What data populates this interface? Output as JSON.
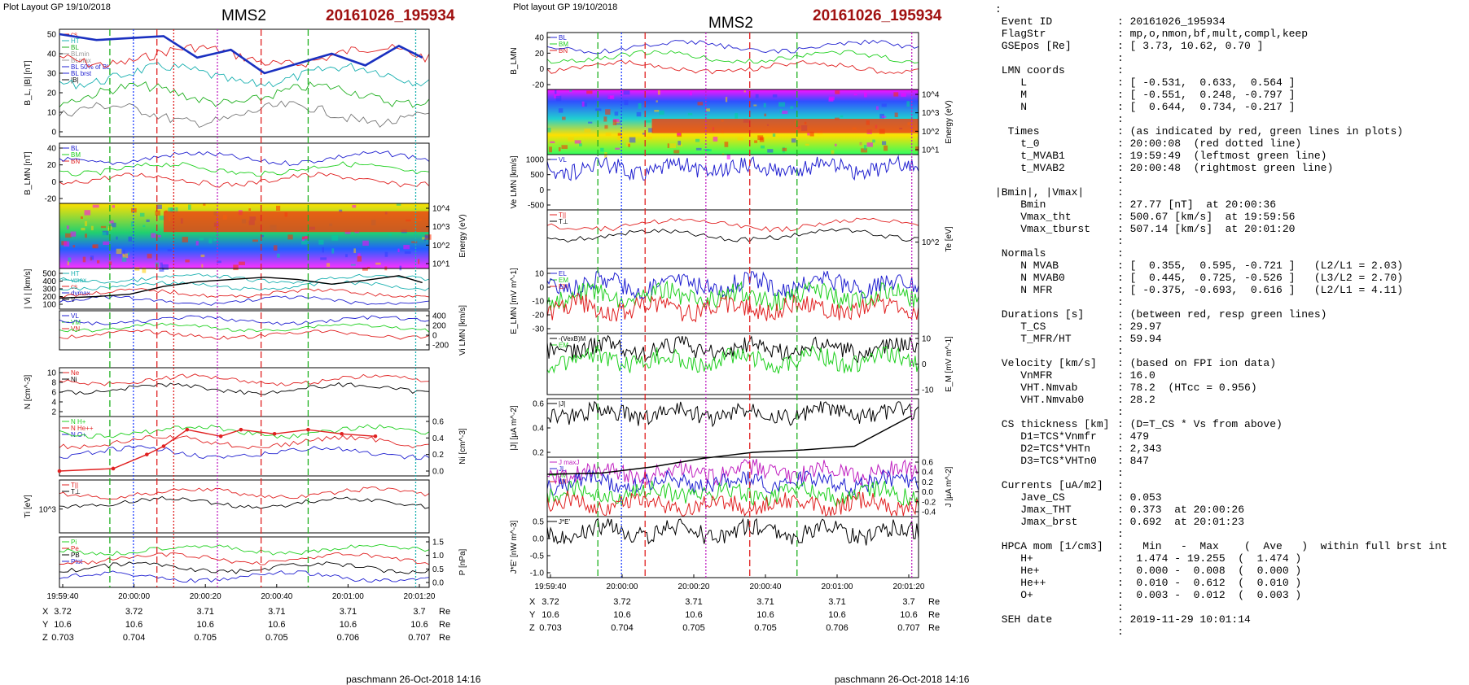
{
  "left_figure": {
    "header": "Plot Layout GP 19/10/2018",
    "spacecraft": "MMS2",
    "event": "20161026_195934",
    "footer": "paschmann 26-Oct-2018 14:16",
    "time_ticks": [
      "19:59:40",
      "20:00:00",
      "20:00:20",
      "20:00:40",
      "20:01:00",
      "20:01:20"
    ],
    "position_table": {
      "X": [
        "3.72",
        "3.72",
        "3.71",
        "3.71",
        "3.71",
        "3.7"
      ],
      "Y": [
        "10.6",
        "10.6",
        "10.6",
        "10.6",
        "10.6",
        "10.6"
      ],
      "Z": [
        "0.703",
        "0.704",
        "0.705",
        "0.705",
        "0.706",
        "0.707"
      ],
      "unit": "Re"
    },
    "panels": [
      {
        "ylabel": "B_L, |B| [nT]",
        "ticks": [
          "50",
          "40",
          "30",
          "20",
          "10",
          "0"
        ],
        "legend": [
          "cs",
          "HT",
          "BL",
          "BLmin",
          "BLmax",
          "BL 50% of BL",
          "BL brst",
          "|B|"
        ],
        "legend_colors": [
          "#e02020",
          "#19b0b0",
          "#20b020",
          "#999999",
          "#999999",
          "#2020d0",
          "#2020d0",
          "#000000"
        ]
      },
      {
        "ylabel": "B_LMN [nT]",
        "ticks": [
          "40",
          "20",
          "0",
          "-20"
        ],
        "legend": [
          "BL",
          "BM",
          "BN"
        ],
        "legend_colors": [
          "#2020d0",
          "#20d020",
          "#e02020"
        ]
      },
      {
        "ylabel": "Energy (eV)",
        "ticks": [
          "10^4",
          "10^3",
          "10^2",
          "10^1"
        ],
        "kind": "spectrogram"
      },
      {
        "ylabel": "| Vi | [km/s]",
        "ticks": [
          "500",
          "400",
          "300",
          "200",
          "100"
        ],
        "legend": [
          "HT",
          "vmax",
          "cs",
          "dvmax",
          "V"
        ],
        "legend_colors": [
          "#19b0b0",
          "#19b0b0",
          "#e02020",
          "#2020d0",
          "#000000"
        ]
      },
      {
        "ylabel": "Vi LMN [km/s]",
        "ticks": [
          "400",
          "200",
          "0",
          "-200"
        ],
        "legend": [
          "VL",
          "VM",
          "VN"
        ],
        "legend_colors": [
          "#2020d0",
          "#20d020",
          "#e02020"
        ]
      },
      {
        "ylabel": "N [cm^-3]",
        "ticks": [
          "10",
          "8",
          "6",
          "4",
          "2"
        ],
        "legend": [
          "Ne",
          "Ni"
        ],
        "legend_colors": [
          "#e02020",
          "#000000"
        ]
      },
      {
        "ylabel": "Ni [cm^-3]",
        "ticks": [
          "0.6",
          "0.4",
          "0.2",
          "0.0"
        ],
        "legend": [
          "N H+",
          "N He++",
          "N O+"
        ],
        "legend_colors": [
          "#20d020",
          "#e02020",
          "#2020d0"
        ]
      },
      {
        "ylabel": "Ti [eV]",
        "ticks": [
          "10^3"
        ],
        "legend": [
          "T||",
          "T⊥"
        ],
        "legend_colors": [
          "#e02020",
          "#000000"
        ]
      },
      {
        "ylabel": "P [nPa]",
        "ticks": [
          "1.5",
          "1.0",
          "0.5",
          "0.0"
        ],
        "legend": [
          "Pi",
          "Pe",
          "PB",
          "Ptot"
        ],
        "legend_colors": [
          "#20d020",
          "#e02020",
          "#000000",
          "#2020d0"
        ]
      }
    ]
  },
  "right_figure": {
    "header": "Plot layout GP 19/10/2018",
    "spacecraft": "MMS2",
    "event": "20161026_195934",
    "footer": "paschmann 26-Oct-2018 14:16",
    "time_ticks": [
      "19:59:40",
      "20:00:00",
      "20:00:20",
      "20:00:40",
      "20:01:00",
      "20:01:20"
    ],
    "position_table": {
      "X": [
        "3.72",
        "3.72",
        "3.71",
        "3.71",
        "3.71",
        "3.7"
      ],
      "Y": [
        "10.6",
        "10.6",
        "10.6",
        "10.6",
        "10.6",
        "10.6"
      ],
      "Z": [
        "0.703",
        "0.704",
        "0.705",
        "0.705",
        "0.706",
        "0.707"
      ],
      "unit": "Re"
    },
    "panels": [
      {
        "ylabel": "B_LMN",
        "ticks": [
          "40",
          "20",
          "0",
          "-20"
        ],
        "legend": [
          "BL",
          "BM",
          "BN"
        ],
        "legend_colors": [
          "#2020d0",
          "#20d020",
          "#e02020"
        ]
      },
      {
        "ylabel": "Energy (eV)",
        "ticks": [
          "10^4",
          "10^3",
          "10^2",
          "10^1"
        ],
        "kind": "spectrogram"
      },
      {
        "ylabel": "Ve LMN [km/s]",
        "ticks": [
          "1000",
          "500",
          "0",
          "-500"
        ],
        "legend": [
          "VL"
        ],
        "legend_colors": [
          "#2020d0"
        ]
      },
      {
        "ylabel": "Te [eV]",
        "ticks": [
          "10^2"
        ],
        "legend": [
          "T||",
          "T⊥"
        ],
        "legend_colors": [
          "#e02020",
          "#000000"
        ]
      },
      {
        "ylabel": "E_LMN [mV m^-1]",
        "ticks": [
          "10",
          "0",
          "-10",
          "-20",
          "-30"
        ],
        "legend": [
          "EL",
          "EM",
          "EN"
        ],
        "legend_colors": [
          "#2020d0",
          "#20d020",
          "#e02020"
        ]
      },
      {
        "ylabel": "E_M [mV m^-1]",
        "ticks": [
          "10",
          "0",
          "-10"
        ],
        "legend": [
          "-(VexB)M",
          "EM"
        ],
        "legend_colors": [
          "#000000",
          "#20d020"
        ]
      },
      {
        "ylabel": "|J| [μA m^-2]",
        "ticks": [
          "0.6",
          "0.4",
          "0.2"
        ],
        "legend": [
          "|J|"
        ],
        "legend_colors": [
          "#000000"
        ]
      },
      {
        "ylabel": "J [μA m^-2]",
        "ticks": [
          "0.6",
          "0.4",
          "0.2",
          "0.0",
          "-0.2",
          "-0.4"
        ],
        "legend": [
          "J maxJ",
          "JL",
          "JM",
          "JN"
        ],
        "legend_colors": [
          "#c020c0",
          "#2020d0",
          "#20d020",
          "#e02020"
        ]
      },
      {
        "ylabel": "J*E' [nW m^-3]",
        "ticks": [
          "0.5",
          "0.0",
          "-0.5",
          "-1.0"
        ],
        "legend": [
          "J*E'"
        ],
        "legend_colors": [
          "#000000"
        ]
      }
    ]
  },
  "info_panel": {
    "lines": [
      {
        "label": ":",
        "value": ""
      },
      {
        "label": " Event ID",
        "value": ": 20161026_195934"
      },
      {
        "label": " FlagStr",
        "value": ": mp,o,nmon,bf,mult,compl,keep"
      },
      {
        "label": " GSEpos [Re]",
        "value": ": [ 3.73, 10.62, 0.70 ]"
      },
      {
        "label": "",
        "value": ":"
      },
      {
        "label": " LMN coords",
        "value": ":"
      },
      {
        "label": "    L",
        "value": ": [ -0.531,  0.633,  0.564 ]"
      },
      {
        "label": "    M",
        "value": ": [ -0.551,  0.248, -0.797 ]"
      },
      {
        "label": "    N",
        "value": ": [  0.644,  0.734, -0.217 ]"
      },
      {
        "label": "",
        "value": ":"
      },
      {
        "label": "  Times",
        "value": ": (as indicated by red, green lines in plots)"
      },
      {
        "label": "    t_0",
        "value": ": 20:00:08  (red dotted line)"
      },
      {
        "label": "    t_MVAB1",
        "value": ": 19:59:49  (leftmost green line)"
      },
      {
        "label": "    t_MVAB2",
        "value": ": 20:00:48  (rightmost green line)"
      },
      {
        "label": "",
        "value": ":"
      },
      {
        "label": "|Bmin|, |Vmax|",
        "value": ":"
      },
      {
        "label": "    Bmin",
        "value": ": 27.77 [nT]  at 20:00:36"
      },
      {
        "label": "    Vmax_tht",
        "value": ": 500.67 [km/s]  at 19:59:56"
      },
      {
        "label": "    Vmax_tburst",
        "value": ": 507.14 [km/s]  at 20:01:20"
      },
      {
        "label": "",
        "value": ":"
      },
      {
        "label": " Normals",
        "value": ":"
      },
      {
        "label": "    N MVAB",
        "value": ": [  0.355,  0.595, -0.721 ]   (L2/L1 = 2.03)"
      },
      {
        "label": "    N MVAB0",
        "value": ": [  0.445,  0.725, -0.526 ]   (L3/L2 = 2.70)"
      },
      {
        "label": "    N MFR",
        "value": ": [ -0.375, -0.693,  0.616 ]   (L2/L1 = 4.11)"
      },
      {
        "label": "",
        "value": ":"
      },
      {
        "label": " Durations [s]",
        "value": ": (between red, resp green lines)"
      },
      {
        "label": "    T_CS",
        "value": ": 29.97"
      },
      {
        "label": "    T_MFR/HT",
        "value": ": 59.94"
      },
      {
        "label": "",
        "value": ":"
      },
      {
        "label": " Velocity [km/s]",
        "value": ": (based on FPI ion data)"
      },
      {
        "label": "    VnMFR",
        "value": ": 16.0"
      },
      {
        "label": "    VHT.Nmvab",
        "value": ": 78.2  (HTcc = 0.956)"
      },
      {
        "label": "    VHT.Nmvab0",
        "value": ": 28.2"
      },
      {
        "label": "",
        "value": ":"
      },
      {
        "label": " CS thickness [km]",
        "value": ": (D=T_CS * Vs from above)"
      },
      {
        "label": "    D1=TCS*Vnmfr",
        "value": ": 479"
      },
      {
        "label": "    D2=TCS*VHTn",
        "value": ": 2,343"
      },
      {
        "label": "    D3=TCS*VHTn0",
        "value": ": 847"
      },
      {
        "label": "",
        "value": ":"
      },
      {
        "label": " Currents [uA/m2]",
        "value": ":"
      },
      {
        "label": "    Jave_CS",
        "value": ": 0.053"
      },
      {
        "label": "    Jmax_THT",
        "value": ": 0.373  at 20:00:26"
      },
      {
        "label": "    Jmax_brst",
        "value": ": 0.692  at 20:01:23"
      },
      {
        "label": "",
        "value": ":"
      },
      {
        "label": " HPCA mom [1/cm3]",
        "value": ":   Min   -  Max    (  Ave   )  within full brst int"
      },
      {
        "label": "    H+",
        "value": ":  1.474 - 19.255  (  1.474 )"
      },
      {
        "label": "    He+",
        "value": ":  0.000 -  0.008  (  0.000 )"
      },
      {
        "label": "    He++",
        "value": ":  0.010 -  0.612  (  0.010 )"
      },
      {
        "label": "    O+",
        "value": ":  0.003 -  0.012  (  0.003 )"
      },
      {
        "label": "",
        "value": ":"
      },
      {
        "label": " SEH date",
        "value": ": 2019-11-29 10:01:14"
      },
      {
        "label": "",
        "value": ":"
      }
    ]
  },
  "chart_data": [
    {
      "type": "line",
      "figure": "left",
      "x_ticks": [
        "19:59:40",
        "20:00:00",
        "20:00:20",
        "20:00:40",
        "20:01:00",
        "20:01:20"
      ],
      "series": [
        {
          "name": "BL",
          "panel": 0,
          "x": [
            "19:59:34",
            "19:59:45",
            "19:59:55",
            "20:00:05",
            "20:00:15",
            "20:00:25",
            "20:00:35",
            "20:00:45",
            "20:00:55",
            "20:01:05",
            "20:01:15",
            "20:01:22"
          ],
          "y": [
            50,
            47,
            48,
            49,
            38,
            42,
            30,
            35,
            40,
            34,
            44,
            38
          ]
        },
        {
          "name": "V",
          "panel": 3,
          "x": [
            "19:59:34",
            "19:59:45",
            "19:59:55",
            "20:00:05",
            "20:00:15",
            "20:00:25",
            "20:00:35",
            "20:00:45",
            "20:00:55",
            "20:01:05",
            "20:01:15",
            "20:01:22"
          ],
          "y": [
            180,
            200,
            230,
            330,
            390,
            420,
            450,
            420,
            360,
            410,
            470,
            380
          ]
        },
        {
          "name": "N He++",
          "panel": 6,
          "x": [
            "19:59:34",
            "19:59:50",
            "20:00:00",
            "20:00:05",
            "20:00:12",
            "20:00:22",
            "20:00:28",
            "20:00:38",
            "20:00:48",
            "20:00:58",
            "20:01:08"
          ],
          "y": [
            0.0,
            0.03,
            0.2,
            0.3,
            0.5,
            0.42,
            0.5,
            0.45,
            0.5,
            0.45,
            0.42
          ]
        }
      ]
    },
    {
      "type": "line",
      "figure": "right",
      "x_ticks": [
        "19:59:40",
        "20:00:00",
        "20:00:20",
        "20:00:40",
        "20:01:00",
        "20:01:20"
      ],
      "series": [
        {
          "name": "|J|",
          "panel": 6,
          "x": [
            "19:59:34",
            "19:59:50",
            "20:00:05",
            "20:00:20",
            "20:00:35",
            "20:00:50",
            "20:01:05",
            "20:01:22"
          ],
          "y": [
            0.02,
            0.03,
            0.08,
            0.15,
            0.2,
            0.22,
            0.25,
            0.5
          ]
        }
      ]
    }
  ]
}
